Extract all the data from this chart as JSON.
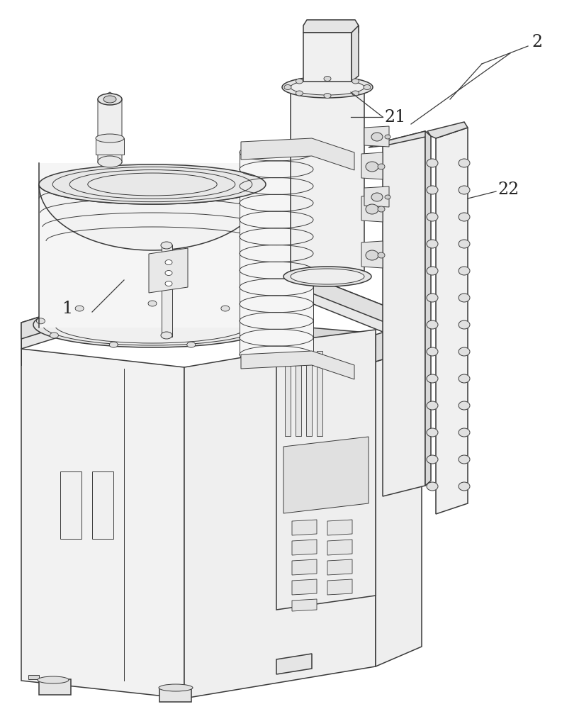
{
  "bg_color": "#ffffff",
  "lc": "#3a3a3a",
  "lw": 1.1,
  "lw_thin": 0.7,
  "fc_light": "#f5f5f5",
  "fc_mid": "#ebebeb",
  "fc_dark": "#d8d8d8",
  "fc_white": "#ffffff",
  "label_1": "1",
  "label_2": "2",
  "label_21": "21",
  "label_22": "22",
  "fig_width": 7.93,
  "fig_height": 10.0,
  "dpi": 100
}
